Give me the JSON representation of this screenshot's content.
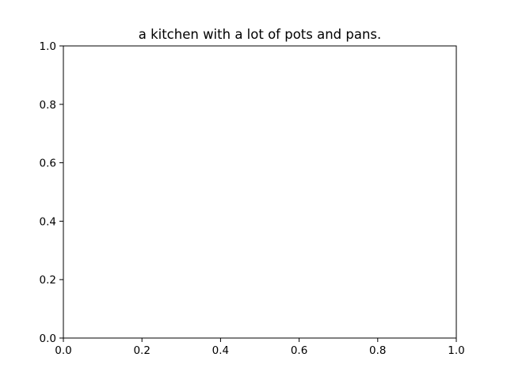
{
  "chart_data": {
    "type": "scatter",
    "title": "a kitchen with a lot of pots and pans.",
    "xlabel": "",
    "ylabel": "",
    "xlim": [
      0.0,
      1.0
    ],
    "ylim": [
      0.0,
      1.0
    ],
    "xticks": [
      "0.0",
      "0.2",
      "0.4",
      "0.6",
      "0.8",
      "1.0"
    ],
    "yticks": [
      "0.0",
      "0.2",
      "0.4",
      "0.6",
      "0.8",
      "1.0"
    ],
    "series": [],
    "grid": false,
    "colors": {
      "axes": "#000000",
      "background": "#ffffff"
    }
  }
}
